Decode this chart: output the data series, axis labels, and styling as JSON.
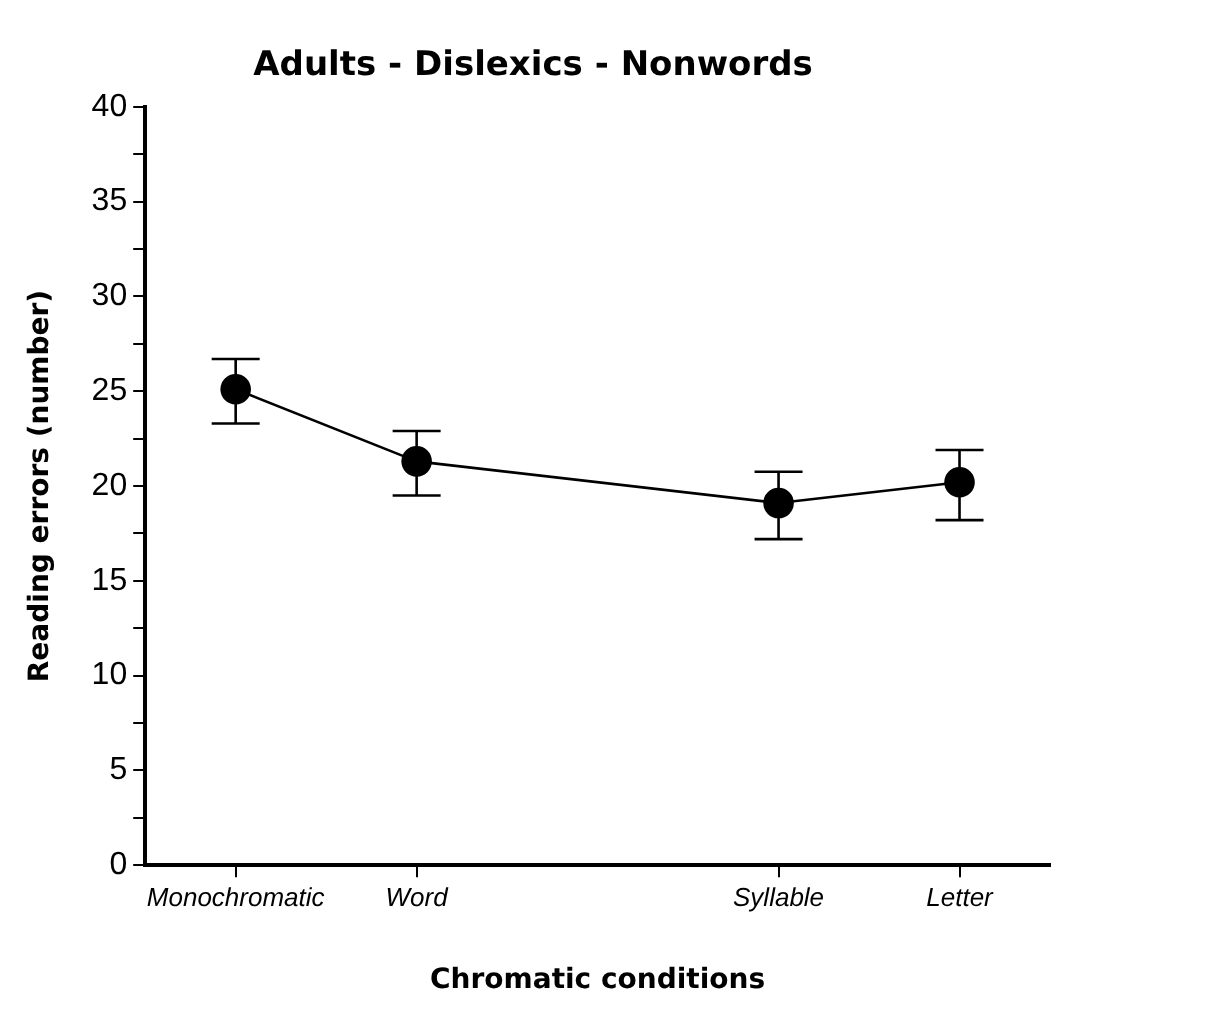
{
  "chart_data": {
    "type": "line",
    "title": "Adults - Dislexics - Nonwords",
    "xlabel": "Chromatic conditions",
    "ylabel": "Reading errors (number)",
    "categories": [
      "Monochromatic",
      "Word",
      null,
      "Syllable",
      "Letter"
    ],
    "values": [
      25.1,
      21.3,
      null,
      19.1,
      20.2
    ],
    "errors": [
      [
        23.3,
        26.7
      ],
      [
        19.5,
        22.9
      ],
      null,
      [
        17.2,
        20.75
      ],
      [
        18.2,
        21.9
      ]
    ],
    "color": "#000000",
    "marker": "circle",
    "ylim": [
      0,
      40
    ],
    "yticks": [
      0,
      {
        "value": 2.5,
        "label": null
      },
      5,
      {
        "value": 7.5,
        "label": null
      },
      10,
      {
        "value": 12.5,
        "label": null
      },
      15,
      {
        "value": 17.5,
        "label": null
      },
      20,
      {
        "value": 22.5,
        "label": null
      },
      25,
      {
        "value": 27.5,
        "label": null
      },
      30,
      {
        "value": 32.5,
        "label": null
      },
      35,
      {
        "value": 37.5,
        "label": null
      },
      40
    ],
    "grid": false,
    "legend": false
  }
}
